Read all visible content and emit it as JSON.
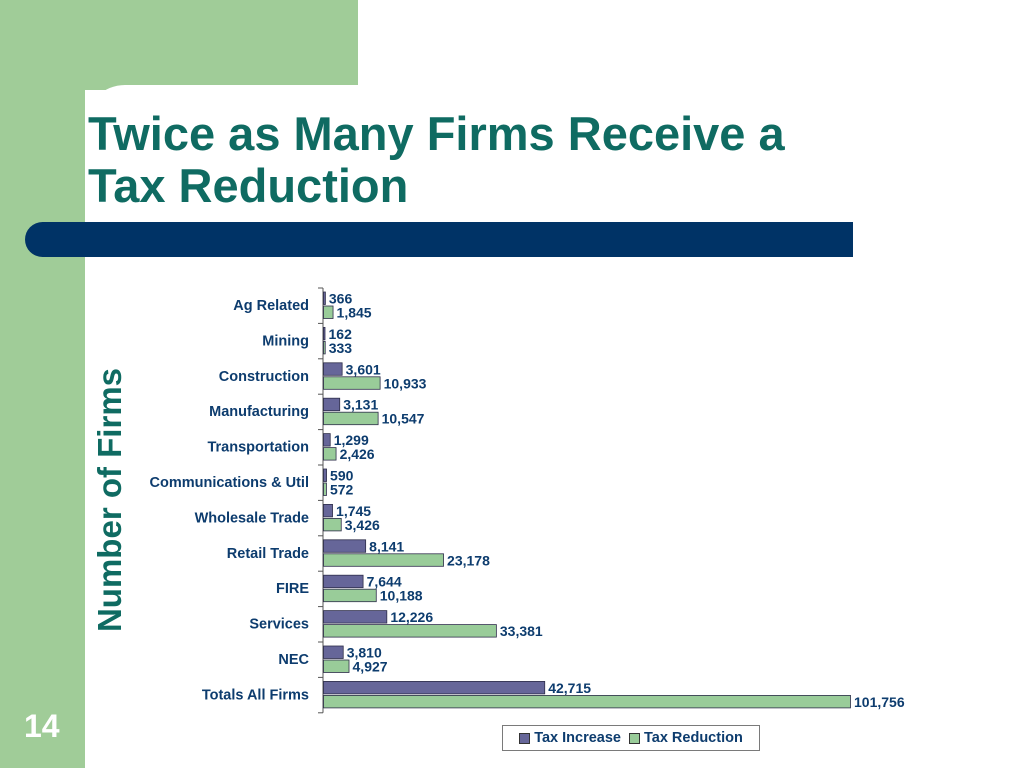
{
  "slide": {
    "title_line1": "Twice as Many Firms Receive a",
    "title_line2": "Tax Reduction",
    "number": "14"
  },
  "colors": {
    "accent_green": "#a0cc98",
    "title_teal": "#0f6b62",
    "bar_navy": "#003366",
    "tax_increase": "#666699",
    "tax_reduction": "#99cc99",
    "label_text": "#0d3c6e"
  },
  "chart_data": {
    "type": "bar",
    "orientation": "horizontal",
    "categories": [
      "Ag Related",
      "Mining",
      "Construction",
      "Manufacturing",
      "Transportation",
      "Communications & Util",
      "Wholesale Trade",
      "Retail Trade",
      "FIRE",
      "Services",
      "NEC",
      "Totals All Firms"
    ],
    "series": [
      {
        "name": "Tax Increase",
        "values": [
          366,
          162,
          3601,
          3131,
          1299,
          590,
          1745,
          8141,
          7644,
          12226,
          3810,
          42715
        ],
        "labels": [
          "366",
          "162",
          "3,601",
          "3,131",
          "1,299",
          "590",
          "1,745",
          "8,141",
          "7,644",
          "12,226",
          "3,810",
          "42,715"
        ]
      },
      {
        "name": "Tax Reduction",
        "values": [
          1845,
          333,
          10933,
          10547,
          2426,
          572,
          3426,
          23178,
          10188,
          33381,
          4927,
          101756
        ],
        "labels": [
          "1,845",
          "333",
          "10,933",
          "10,547",
          "2,426",
          "572",
          "3,426",
          "23,178",
          "10,188",
          "33,381",
          "4,927",
          "101,756"
        ]
      }
    ],
    "title": "",
    "xlabel": "",
    "ylabel": "Number of Firms",
    "xlim": [
      0,
      101756
    ],
    "grid": false,
    "legend_position": "bottom-right"
  }
}
